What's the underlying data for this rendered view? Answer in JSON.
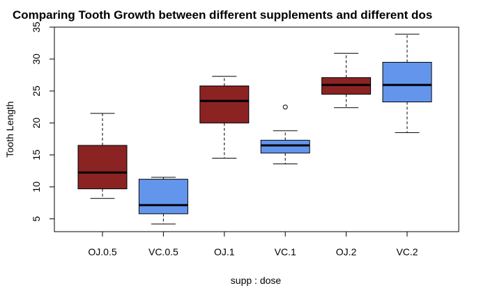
{
  "chart_data": {
    "type": "boxplot",
    "title": "Comparing Tooth Growth between different supplements and different dos",
    "xlabel": "supp : dose",
    "ylabel": "Tooth Length",
    "ylim": [
      3,
      35
    ],
    "yticks": [
      5,
      10,
      15,
      20,
      25,
      30,
      35
    ],
    "categories": [
      "OJ.0.5",
      "VC.0.5",
      "OJ.1",
      "VC.1",
      "OJ.2",
      "VC.2"
    ],
    "colors": {
      "OJ": "#8B2323",
      "VC": "#6495ED"
    },
    "groups": [
      {
        "label": "OJ.0.5",
        "supp": "OJ",
        "min": 8.2,
        "q1": 9.7,
        "median": 12.25,
        "q3": 16.5,
        "max": 21.5,
        "outliers": []
      },
      {
        "label": "VC.0.5",
        "supp": "VC",
        "min": 4.2,
        "q1": 5.8,
        "median": 7.15,
        "q3": 11.2,
        "max": 11.5,
        "outliers": []
      },
      {
        "label": "OJ.1",
        "supp": "OJ",
        "min": 14.5,
        "q1": 20.0,
        "median": 23.45,
        "q3": 25.8,
        "max": 27.3,
        "outliers": []
      },
      {
        "label": "VC.1",
        "supp": "VC",
        "min": 13.6,
        "q1": 15.3,
        "median": 16.5,
        "q3": 17.3,
        "max": 18.8,
        "outliers": [
          22.5
        ]
      },
      {
        "label": "OJ.2",
        "supp": "OJ",
        "min": 22.4,
        "q1": 24.5,
        "median": 25.95,
        "q3": 27.1,
        "max": 30.9,
        "outliers": []
      },
      {
        "label": "VC.2",
        "supp": "VC",
        "min": 18.5,
        "q1": 23.3,
        "median": 25.95,
        "q3": 29.5,
        "max": 33.9,
        "outliers": []
      }
    ]
  }
}
